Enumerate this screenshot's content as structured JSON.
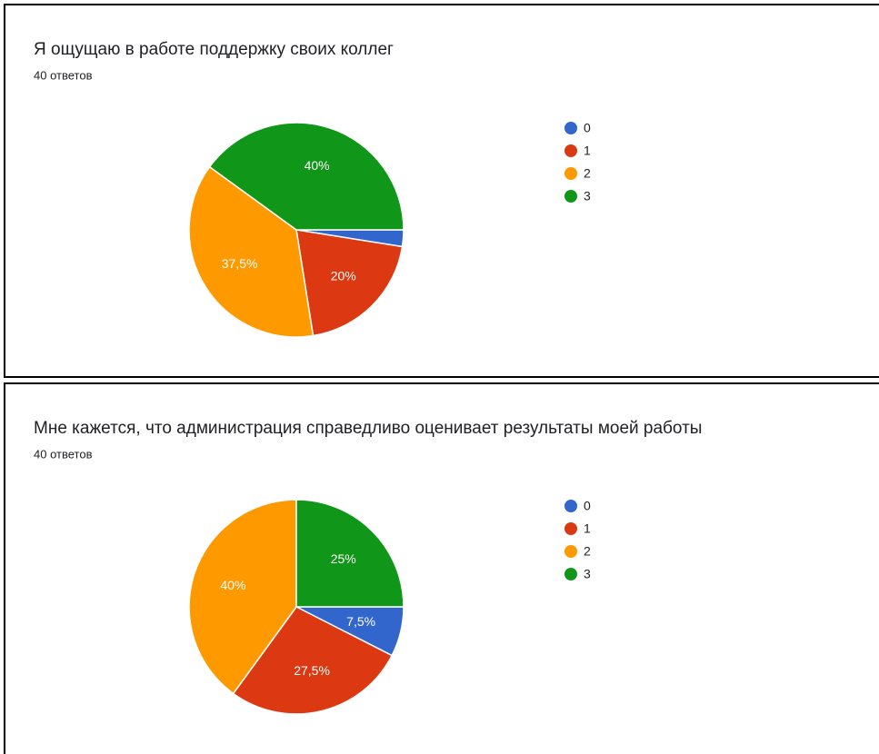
{
  "chart_data": [
    {
      "type": "pie",
      "title": "Я ощущаю в работе поддержку своих коллег",
      "subtitle": "40 ответов",
      "categories": [
        "0",
        "1",
        "2",
        "3"
      ],
      "values": [
        2.5,
        20,
        37.5,
        40
      ],
      "value_labels": [
        null,
        "20%",
        "37,5%",
        "40%"
      ],
      "colors": [
        "#3366cc",
        "#dc3912",
        "#ff9900",
        "#109618"
      ]
    },
    {
      "type": "pie",
      "title": "Мне кажется, что администрация справедливо оценивает результаты моей работы",
      "subtitle": "40 ответов",
      "categories": [
        "0",
        "1",
        "2",
        "3"
      ],
      "values": [
        7.5,
        27.5,
        40,
        25
      ],
      "value_labels": [
        "7,5%",
        "27,5%",
        "40%",
        "25%"
      ],
      "colors": [
        "#3366cc",
        "#dc3912",
        "#ff9900",
        "#109618"
      ]
    }
  ]
}
